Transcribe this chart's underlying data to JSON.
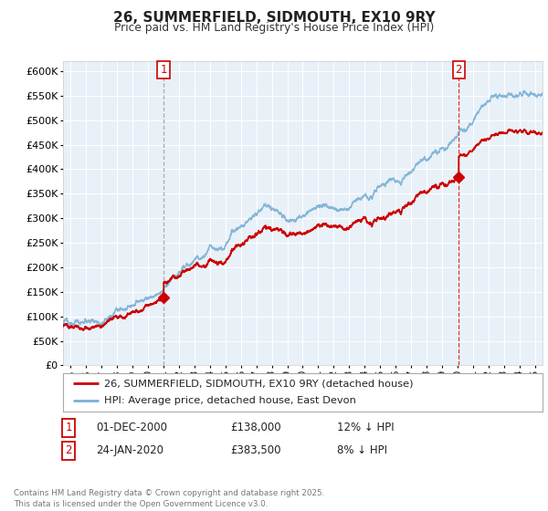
{
  "title": "26, SUMMERFIELD, SIDMOUTH, EX10 9RY",
  "subtitle": "Price paid vs. HM Land Registry's House Price Index (HPI)",
  "legend_line1": "26, SUMMERFIELD, SIDMOUTH, EX10 9RY (detached house)",
  "legend_line2": "HPI: Average price, detached house, East Devon",
  "annotation1_label": "1",
  "annotation1_date": "01-DEC-2000",
  "annotation1_price": "£138,000",
  "annotation1_hpi": "12% ↓ HPI",
  "annotation2_label": "2",
  "annotation2_date": "24-JAN-2020",
  "annotation2_price": "£383,500",
  "annotation2_hpi": "8% ↓ HPI",
  "footnote": "Contains HM Land Registry data © Crown copyright and database right 2025.\nThis data is licensed under the Open Government Licence v3.0.",
  "ylim": [
    0,
    620000
  ],
  "yticks": [
    0,
    50000,
    100000,
    150000,
    200000,
    250000,
    300000,
    350000,
    400000,
    450000,
    500000,
    550000,
    600000
  ],
  "red_line_color": "#cc0000",
  "blue_line_color": "#7ab0d4",
  "marker_color": "#cc0000",
  "vline1_x": 2001.0,
  "vline2_x": 2020.08,
  "marker1_x": 2001.0,
  "marker1_y": 138000,
  "marker2_x": 2020.08,
  "marker2_y": 383500,
  "fig_bg": "#ffffff",
  "plot_bg": "#e8f0f8",
  "grid_color": "#ffffff",
  "xlim_start": 1994.5,
  "xlim_end": 2025.5
}
